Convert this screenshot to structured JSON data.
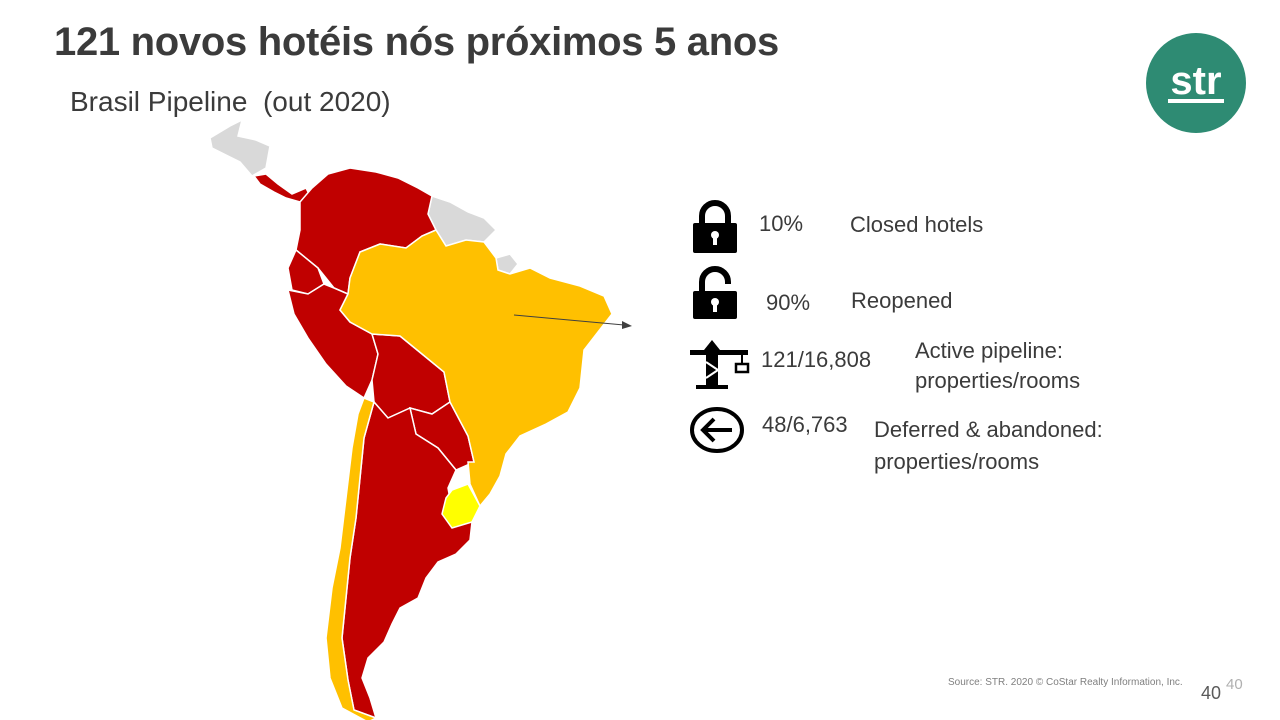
{
  "slide": {
    "title": "121 novos hotéis nós próximos 5 anos",
    "subtitle": "Brasil Pipeline  (out 2020)",
    "logo_text": "str"
  },
  "stats": [
    {
      "icon": "lock-closed-icon",
      "value": "10%",
      "label": "Closed hotels"
    },
    {
      "icon": "lock-open-icon",
      "value": "90%",
      "label": "Reopened"
    },
    {
      "icon": "construction-crane-icon",
      "value": "121/16,808",
      "label_line1": "Active pipeline:",
      "label_line2": "properties/rooms"
    },
    {
      "icon": "arrow-left-circle-icon",
      "value": "48/6,763",
      "label_line1": "Deferred & abandoned:",
      "label_line2": "properties/rooms"
    }
  ],
  "footer": {
    "source": "Source: STR. 2020 © CoStar Realty Information, Inc.",
    "page_number_ghost": "40",
    "page_number": "40"
  },
  "colors": {
    "red": "#c00000",
    "orange": "#ffc000",
    "yellow": "#ffff00",
    "grey": "#d9d9d9",
    "brand": "#2e8b73"
  }
}
